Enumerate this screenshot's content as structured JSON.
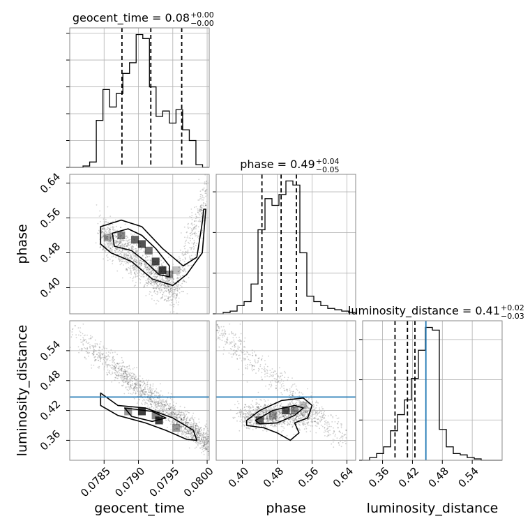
{
  "chart_data": {
    "type": "corner",
    "parameters": [
      {
        "name": "geocent_time",
        "range": [
          0.078,
          0.08003
        ],
        "ticks": [
          "0.0785",
          "0.0790",
          "0.0795",
          "0.0800"
        ],
        "tick_values": [
          0.0785,
          0.079,
          0.0795,
          0.08
        ],
        "title": {
          "text": "geocent_time = 0.08",
          "sup": "+0.00",
          "sub": "−0.00"
        },
        "quantiles": [
          0.07876,
          0.07918,
          0.07963
        ],
        "truth": null
      },
      {
        "name": "phase",
        "range": [
          0.34,
          0.66
        ],
        "ticks": [
          "0.40",
          "0.48",
          "0.56",
          "0.64"
        ],
        "tick_values": [
          0.4,
          0.48,
          0.56,
          0.64
        ],
        "title": {
          "text": "phase = 0.49",
          "sup": "+0.04",
          "sub": "−0.05"
        },
        "quantiles": [
          0.445,
          0.489,
          0.524
        ],
        "truth": null
      },
      {
        "name": "luminosity_distance",
        "range": [
          0.32,
          0.6
        ],
        "ticks": [
          "0.36",
          "0.42",
          "0.48",
          "0.54"
        ],
        "tick_values": [
          0.36,
          0.42,
          0.48,
          0.54
        ],
        "title": {
          "text": "luminosity_distance = 0.41",
          "sup": "+0.02",
          "sub": "−0.03"
        },
        "quantiles": [
          0.385,
          0.41,
          0.425
        ],
        "truth": 0.447
      }
    ],
    "hist_geocent_time": [
      0.0,
      0.0,
      0.01,
      0.04,
      0.35,
      0.58,
      0.45,
      0.55,
      0.7,
      0.78,
      0.99,
      0.96,
      0.6,
      0.38,
      0.42,
      0.33,
      0.43,
      0.28,
      0.2,
      0.02,
      0.0
    ],
    "hist_phase": [
      0.0,
      0.01,
      0.02,
      0.06,
      0.09,
      0.22,
      0.62,
      0.85,
      0.8,
      0.88,
      0.98,
      0.95,
      0.45,
      0.13,
      0.09,
      0.06,
      0.04,
      0.03,
      0.02,
      0.01
    ],
    "hist_luminosity_distance": [
      0.0,
      0.02,
      0.05,
      0.1,
      0.22,
      0.34,
      0.45,
      0.61,
      0.82,
      0.99,
      0.97,
      0.23,
      0.1,
      0.05,
      0.04,
      0.02,
      0.01,
      0.0,
      0.0,
      0.0
    ],
    "truth_color": "#1f77b4",
    "grid": true
  }
}
